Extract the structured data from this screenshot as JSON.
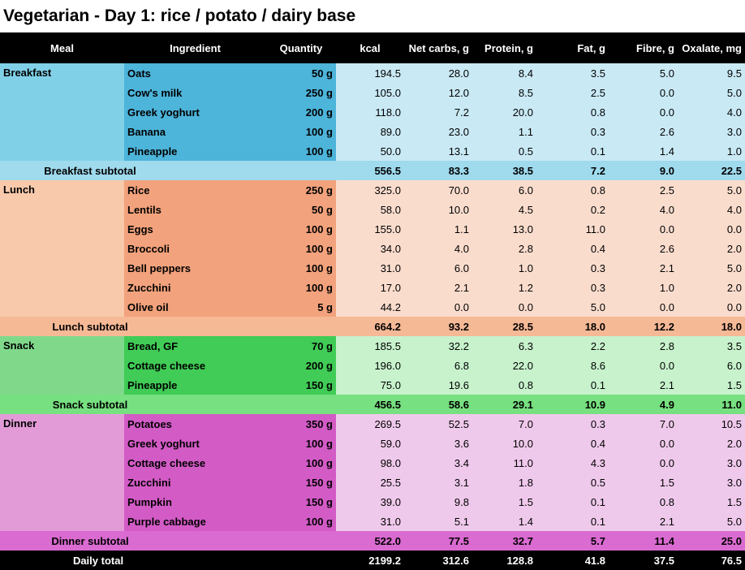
{
  "title": "Vegetarian - Day 1: rice / potato / dairy base",
  "table": {
    "header": [
      "Meal",
      "Ingredient",
      "Quantity",
      "kcal",
      "Net carbs, g",
      "Protein, g",
      "Fat, g",
      "Fibre, g",
      "Oxalate, mg"
    ],
    "sections": [
      {
        "meal": "Breakfast",
        "rows": [
          [
            "Oats",
            "50 g",
            "194.5",
            "28.0",
            "8.4",
            "3.5",
            "5.0",
            "9.5"
          ],
          [
            "Cow's milk",
            "250 g",
            "105.0",
            "12.0",
            "8.5",
            "2.5",
            "0.0",
            "5.0"
          ],
          [
            "Greek yoghurt",
            "200 g",
            "118.0",
            "7.2",
            "20.0",
            "0.8",
            "0.0",
            "4.0"
          ],
          [
            "Banana",
            "100 g",
            "89.0",
            "23.0",
            "1.1",
            "0.3",
            "2.6",
            "3.0"
          ],
          [
            "Pineapple",
            "100 g",
            "50.0",
            "13.1",
            "0.5",
            "0.1",
            "1.4",
            "1.0"
          ]
        ],
        "subtotal": {
          "label": "Breakfast subtotal",
          "values": [
            "556.5",
            "83.3",
            "38.5",
            "7.2",
            "9.0",
            "22.5"
          ]
        }
      },
      {
        "meal": "Lunch",
        "rows": [
          [
            "Rice",
            "250 g",
            "325.0",
            "70.0",
            "6.0",
            "0.8",
            "2.5",
            "5.0"
          ],
          [
            "Lentils",
            "50 g",
            "58.0",
            "10.0",
            "4.5",
            "0.2",
            "4.0",
            "4.0"
          ],
          [
            "Eggs",
            "100 g",
            "155.0",
            "1.1",
            "13.0",
            "11.0",
            "0.0",
            "0.0"
          ],
          [
            "Broccoli",
            "100 g",
            "34.0",
            "4.0",
            "2.8",
            "0.4",
            "2.6",
            "2.0"
          ],
          [
            "Bell peppers",
            "100 g",
            "31.0",
            "6.0",
            "1.0",
            "0.3",
            "2.1",
            "5.0"
          ],
          [
            "Zucchini",
            "100 g",
            "17.0",
            "2.1",
            "1.2",
            "0.3",
            "1.0",
            "2.0"
          ],
          [
            "Olive oil",
            "5 g",
            "44.2",
            "0.0",
            "0.0",
            "5.0",
            "0.0",
            "0.0"
          ]
        ],
        "subtotal": {
          "label": "Lunch subtotal",
          "values": [
            "664.2",
            "93.2",
            "28.5",
            "18.0",
            "12.2",
            "18.0"
          ]
        }
      },
      {
        "meal": "Snack",
        "rows": [
          [
            "Bread, GF",
            "70 g",
            "185.5",
            "32.2",
            "6.3",
            "2.2",
            "2.8",
            "3.5"
          ],
          [
            "Cottage cheese",
            "200 g",
            "196.0",
            "6.8",
            "22.0",
            "8.6",
            "0.0",
            "6.0"
          ],
          [
            "Pineapple",
            "150 g",
            "75.0",
            "19.6",
            "0.8",
            "0.1",
            "2.1",
            "1.5"
          ]
        ],
        "subtotal": {
          "label": "Snack subtotal",
          "values": [
            "456.5",
            "58.6",
            "29.1",
            "10.9",
            "4.9",
            "11.0"
          ]
        }
      },
      {
        "meal": "Dinner",
        "rows": [
          [
            "Potatoes",
            "350 g",
            "269.5",
            "52.5",
            "7.0",
            "0.3",
            "7.0",
            "10.5"
          ],
          [
            "Greek yoghurt",
            "100 g",
            "59.0",
            "3.6",
            "10.0",
            "0.4",
            "0.0",
            "2.0"
          ],
          [
            "Cottage cheese",
            "100 g",
            "98.0",
            "3.4",
            "11.0",
            "4.3",
            "0.0",
            "3.0"
          ],
          [
            "Zucchini",
            "150 g",
            "25.5",
            "3.1",
            "1.8",
            "0.5",
            "1.5",
            "3.0"
          ],
          [
            "Pumpkin",
            "150 g",
            "39.0",
            "9.8",
            "1.5",
            "0.1",
            "0.8",
            "1.5"
          ],
          [
            "Purple cabbage",
            "100 g",
            "31.0",
            "5.1",
            "1.4",
            "0.1",
            "2.1",
            "5.0"
          ]
        ],
        "subtotal": {
          "label": "Dinner subtotal",
          "values": [
            "522.0",
            "77.5",
            "32.7",
            "5.7",
            "11.4",
            "25.0"
          ]
        }
      }
    ],
    "total": {
      "label": "Daily total",
      "values": [
        "2199.2",
        "312.6",
        "128.8",
        "41.8",
        "37.5",
        "76.5"
      ]
    }
  }
}
